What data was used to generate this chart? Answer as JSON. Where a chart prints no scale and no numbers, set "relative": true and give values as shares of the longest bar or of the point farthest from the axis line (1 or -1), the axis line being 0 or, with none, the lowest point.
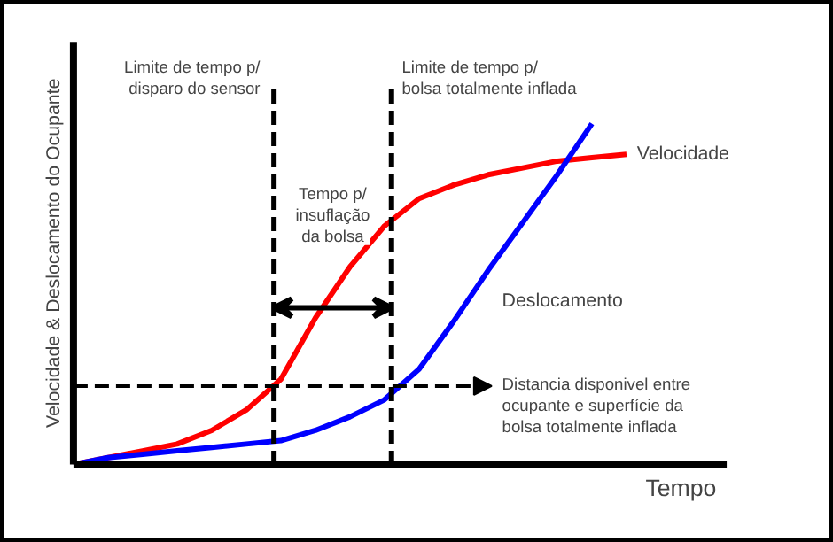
{
  "chart_data": {
    "type": "line",
    "relative": true,
    "xlabel": "Tempo",
    "ylabel": "Velocidade & Deslocamento do Ocupante",
    "categories": [
      null,
      null,
      null,
      null,
      null,
      null,
      null,
      null,
      null,
      null,
      null,
      null,
      null,
      null,
      null,
      null,
      null
    ],
    "series": [
      {
        "name": "Velocidade",
        "color": "#ff0000",
        "values": [
          0,
          0.02,
          0.04,
          0.06,
          0.1,
          0.16,
          0.25,
          0.43,
          0.58,
          0.7,
          0.78,
          0.82,
          0.85,
          0.87,
          0.89,
          0.9,
          0.91
        ]
      },
      {
        "name": "Deslocamento",
        "color": "#0000ff",
        "values": [
          0,
          0.02,
          0.03,
          0.04,
          0.05,
          0.06,
          0.07,
          0.1,
          0.14,
          0.19,
          0.28,
          0.42,
          0.57,
          0.71,
          0.85,
          1.0,
          null
        ]
      }
    ],
    "ref_lines": [
      {
        "axis": "y",
        "value": 0.23,
        "label": "Distancia disponivel entre ocupante e superfície da bolsa totalmente inflada",
        "line_style": "dashed",
        "color": "#000000"
      }
    ],
    "annotations": [
      "Limite de tempo p/ disparo do sensor",
      "Limite de tempo p/ bolsa totalmente inflada",
      "Tempo p/ insuflação da bolsa"
    ],
    "line_style": "solid",
    "marker": "none"
  }
}
